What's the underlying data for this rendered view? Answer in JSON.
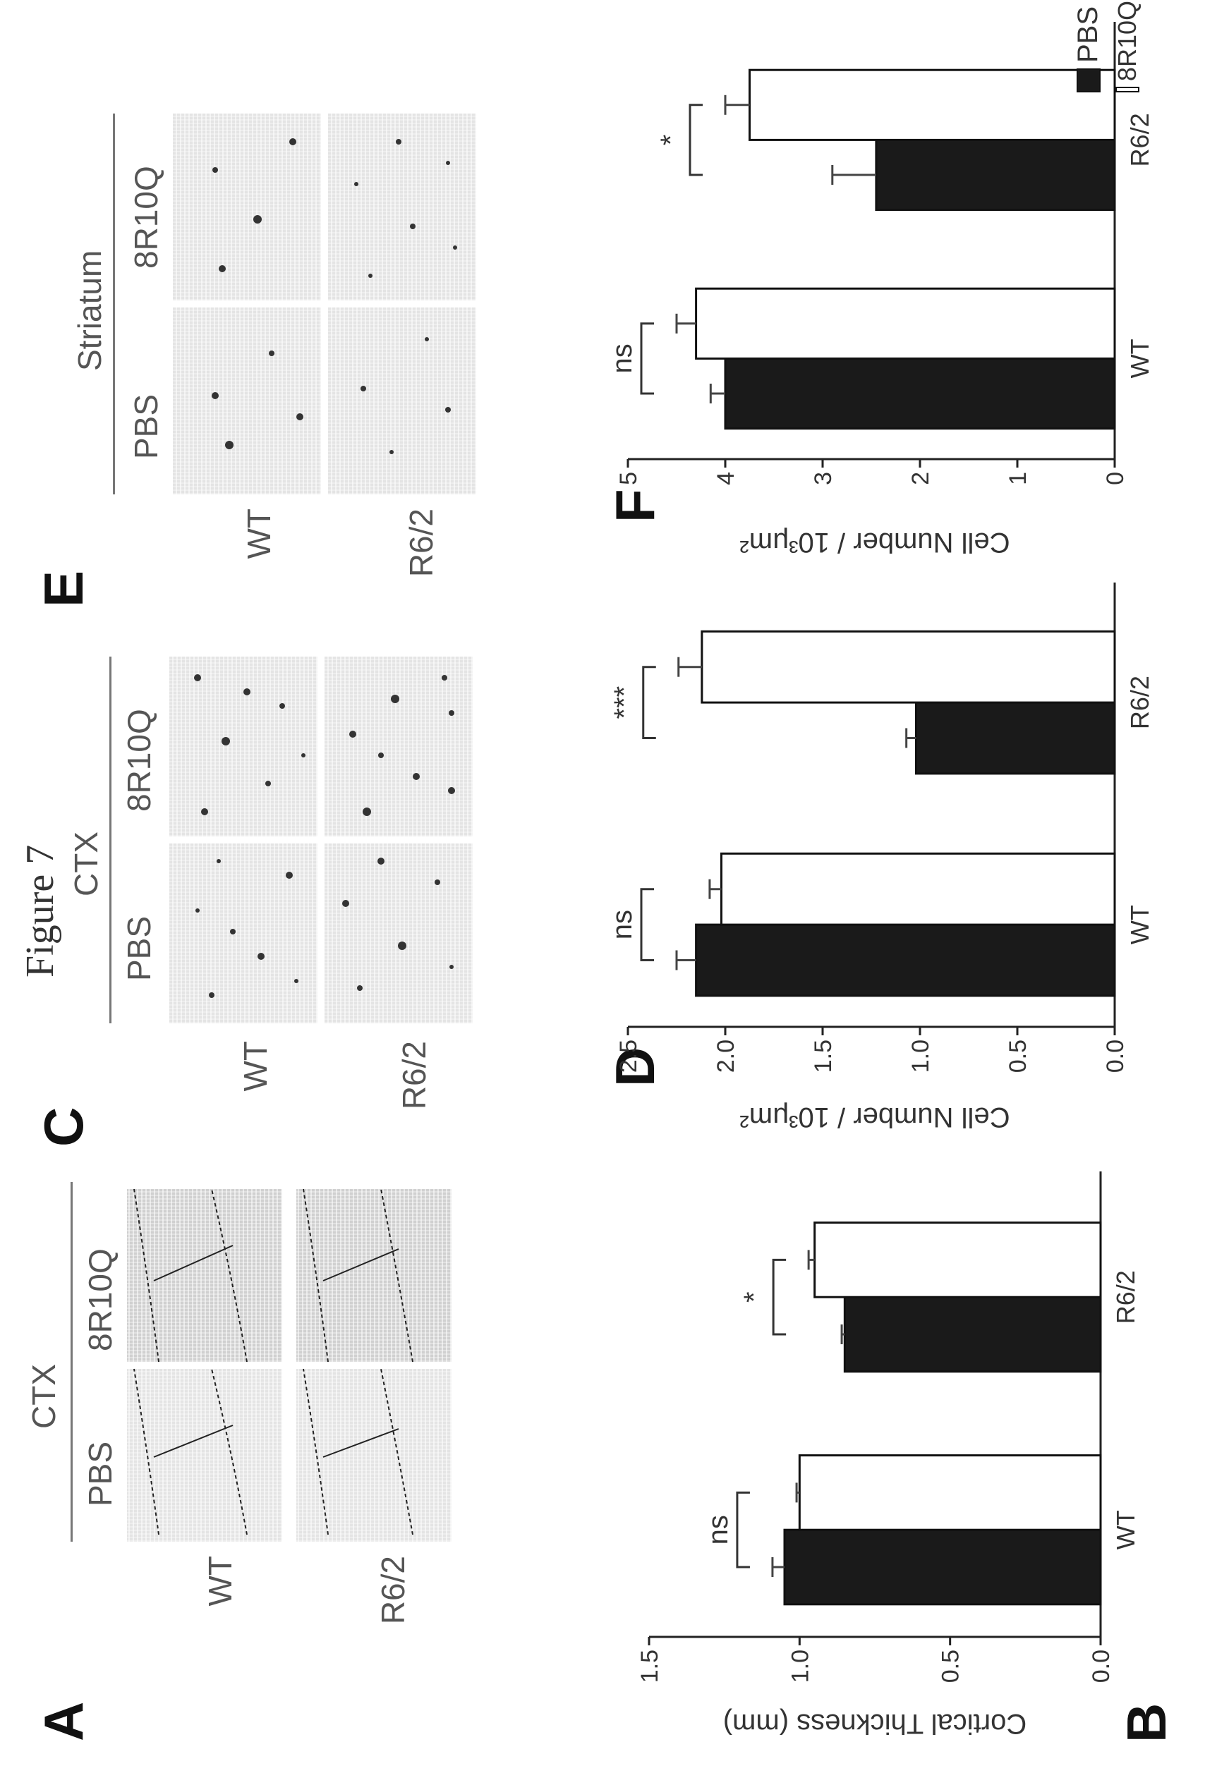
{
  "figure_title": "Figure 7",
  "panels": {
    "A": {
      "label": "A",
      "region": "CTX",
      "columns": [
        "PBS",
        "8R10Q"
      ],
      "rows": [
        "WT",
        "R6/2"
      ]
    },
    "C": {
      "label": "C",
      "region": "CTX",
      "columns": [
        "PBS",
        "8R10Q"
      ],
      "rows": [
        "WT",
        "R6/2"
      ]
    },
    "E": {
      "label": "E",
      "region": "Striatum",
      "columns": [
        "PBS",
        "8R10Q"
      ],
      "rows": [
        "WT",
        "R6/2"
      ]
    },
    "B": {
      "label": "B"
    },
    "D": {
      "label": "D"
    },
    "F": {
      "label": "F"
    }
  },
  "legend": {
    "items": [
      {
        "label": "PBS",
        "color": "#1a1a1a"
      },
      {
        "label": "8R10Q",
        "color": "#ffffff"
      }
    ]
  },
  "chart_data": [
    {
      "type": "bar",
      "panel": "B",
      "ylabel": "Cortical Thickness (mm)",
      "categories": [
        "WT",
        "R6/2"
      ],
      "series": [
        {
          "name": "PBS",
          "values": [
            1.05,
            0.85
          ],
          "errors": [
            0.04,
            0.01
          ]
        },
        {
          "name": "8R10Q",
          "values": [
            1.0,
            0.95
          ],
          "errors": [
            0.01,
            0.02
          ]
        }
      ],
      "ylim": [
        0,
        1.5
      ],
      "yticks": [
        "0.0",
        "0.5",
        "1.0",
        "1.5"
      ],
      "significance": [
        "ns",
        "*"
      ]
    },
    {
      "type": "bar",
      "panel": "D",
      "ylabel": "Cell Number / 10³μm²",
      "categories": [
        "WT",
        "R6/2"
      ],
      "series": [
        {
          "name": "PBS",
          "values": [
            2.15,
            1.02
          ],
          "errors": [
            0.1,
            0.05
          ]
        },
        {
          "name": "8R10Q",
          "values": [
            2.02,
            2.12
          ],
          "errors": [
            0.06,
            0.12
          ]
        }
      ],
      "ylim": [
        0,
        2.5
      ],
      "yticks": [
        "0.0",
        "0.5",
        "1.0",
        "1.5",
        "2.0",
        "2.5"
      ],
      "significance": [
        "ns",
        "***"
      ]
    },
    {
      "type": "bar",
      "panel": "F",
      "ylabel": "Cell Number / 10³μm²",
      "categories": [
        "WT",
        "R6/2"
      ],
      "series": [
        {
          "name": "PBS",
          "values": [
            4.0,
            2.45
          ],
          "errors": [
            0.15,
            0.45
          ]
        },
        {
          "name": "8R10Q",
          "values": [
            4.3,
            3.75
          ],
          "errors": [
            0.2,
            0.25
          ]
        }
      ],
      "ylim": [
        0,
        5
      ],
      "yticks": [
        "0",
        "1",
        "2",
        "3",
        "4",
        "5"
      ],
      "significance": [
        "ns",
        "*"
      ]
    }
  ]
}
